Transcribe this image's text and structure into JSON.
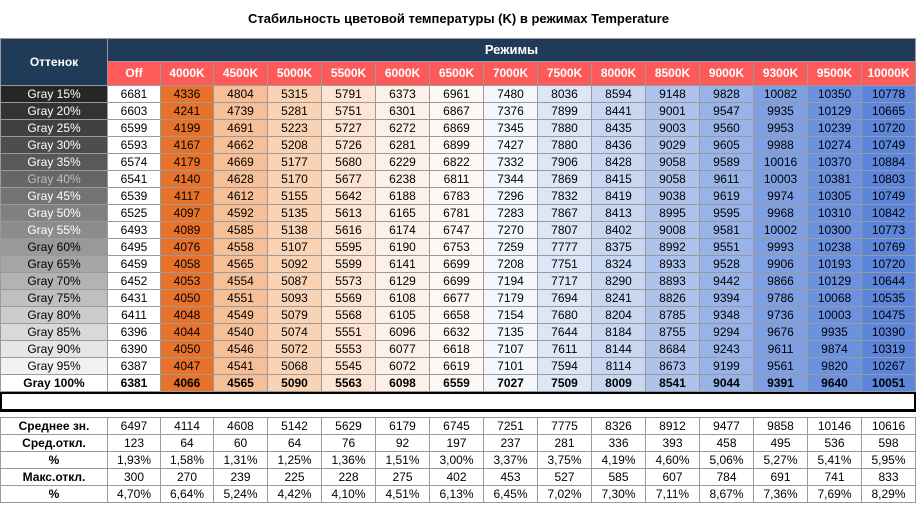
{
  "chart_data": {
    "type": "table",
    "title": "Стабильность цветовой температуры (K) в режимах Temperature",
    "header": {
      "row_header": "Оттенок",
      "group_header": "Режимы"
    },
    "modes": [
      "Off",
      "4000K",
      "4500K",
      "5000K",
      "5500K",
      "6000K",
      "6500K",
      "7000K",
      "7500K",
      "8000K",
      "8500K",
      "9000K",
      "9300K",
      "9500K",
      "10000K"
    ],
    "rows": [
      {
        "label": "Gray 15%",
        "values": [
          "6681",
          "4336",
          "4804",
          "5315",
          "5791",
          "6373",
          "6961",
          "7480",
          "8036",
          "8594",
          "9148",
          "9828",
          "10082",
          "10350",
          "10778"
        ]
      },
      {
        "label": "Gray 20%",
        "values": [
          "6603",
          "4241",
          "4739",
          "5281",
          "5751",
          "6301",
          "6867",
          "7376",
          "7899",
          "8441",
          "9001",
          "9547",
          "9935",
          "10129",
          "10665"
        ]
      },
      {
        "label": "Gray 25%",
        "values": [
          "6599",
          "4199",
          "4691",
          "5223",
          "5727",
          "6272",
          "6869",
          "7345",
          "7880",
          "8435",
          "9003",
          "9560",
          "9953",
          "10239",
          "10720"
        ]
      },
      {
        "label": "Gray 30%",
        "values": [
          "6593",
          "4167",
          "4662",
          "5208",
          "5726",
          "6281",
          "6899",
          "7427",
          "7880",
          "8436",
          "9029",
          "9605",
          "9988",
          "10274",
          "10749"
        ]
      },
      {
        "label": "Gray 35%",
        "values": [
          "6574",
          "4179",
          "4669",
          "5177",
          "5680",
          "6229",
          "6822",
          "7332",
          "7906",
          "8428",
          "9058",
          "9589",
          "10016",
          "10370",
          "10884"
        ]
      },
      {
        "label": "Gray 40%",
        "values": [
          "6541",
          "4140",
          "4628",
          "5170",
          "5677",
          "6238",
          "6811",
          "7344",
          "7869",
          "8415",
          "9058",
          "9611",
          "10003",
          "10381",
          "10803"
        ]
      },
      {
        "label": "Gray 45%",
        "values": [
          "6539",
          "4117",
          "4612",
          "5155",
          "5642",
          "6188",
          "6783",
          "7296",
          "7832",
          "8419",
          "9038",
          "9619",
          "9974",
          "10305",
          "10749"
        ]
      },
      {
        "label": "Gray 50%",
        "values": [
          "6525",
          "4097",
          "4592",
          "5135",
          "5613",
          "6165",
          "6781",
          "7283",
          "7867",
          "8413",
          "8995",
          "9595",
          "9968",
          "10310",
          "10842"
        ]
      },
      {
        "label": "Gray 55%",
        "values": [
          "6493",
          "4089",
          "4585",
          "5138",
          "5616",
          "6174",
          "6747",
          "7270",
          "7807",
          "8402",
          "9008",
          "9581",
          "10002",
          "10300",
          "10773"
        ]
      },
      {
        "label": "Gray 60%",
        "values": [
          "6495",
          "4076",
          "4558",
          "5107",
          "5595",
          "6190",
          "6753",
          "7259",
          "7777",
          "8375",
          "8992",
          "9551",
          "9993",
          "10238",
          "10769"
        ]
      },
      {
        "label": "Gray 65%",
        "values": [
          "6459",
          "4058",
          "4565",
          "5092",
          "5599",
          "6141",
          "6699",
          "7208",
          "7751",
          "8324",
          "8933",
          "9528",
          "9906",
          "10193",
          "10720"
        ]
      },
      {
        "label": "Gray 70%",
        "values": [
          "6452",
          "4053",
          "4554",
          "5087",
          "5573",
          "6129",
          "6699",
          "7194",
          "7717",
          "8290",
          "8893",
          "9442",
          "9866",
          "10129",
          "10644"
        ]
      },
      {
        "label": "Gray 75%",
        "values": [
          "6431",
          "4050",
          "4551",
          "5093",
          "5569",
          "6108",
          "6677",
          "7179",
          "7694",
          "8241",
          "8826",
          "9394",
          "9786",
          "10068",
          "10535"
        ]
      },
      {
        "label": "Gray 80%",
        "values": [
          "6411",
          "4048",
          "4549",
          "5079",
          "5568",
          "6105",
          "6658",
          "7154",
          "7680",
          "8204",
          "8785",
          "9348",
          "9736",
          "10003",
          "10475"
        ]
      },
      {
        "label": "Gray 85%",
        "values": [
          "6396",
          "4044",
          "4540",
          "5074",
          "5551",
          "6096",
          "6632",
          "7135",
          "7644",
          "8184",
          "8755",
          "9294",
          "9676",
          "9935",
          "10390"
        ]
      },
      {
        "label": "Gray 90%",
        "values": [
          "6390",
          "4050",
          "4546",
          "5072",
          "5553",
          "6077",
          "6618",
          "7107",
          "7611",
          "8144",
          "8684",
          "9243",
          "9611",
          "9874",
          "10319"
        ]
      },
      {
        "label": "Gray 95%",
        "values": [
          "6387",
          "4047",
          "4541",
          "5068",
          "5545",
          "6072",
          "6619",
          "7101",
          "7594",
          "8114",
          "8673",
          "9199",
          "9561",
          "9820",
          "10267"
        ]
      },
      {
        "label": "Gray 100%",
        "values": [
          "6381",
          "4066",
          "4565",
          "5090",
          "5563",
          "6098",
          "6559",
          "7027",
          "7509",
          "8009",
          "8541",
          "9044",
          "9391",
          "9640",
          "10051"
        ],
        "bold": true
      }
    ],
    "stats": [
      {
        "label": "Среднее зн.",
        "values": [
          "6497",
          "4114",
          "4608",
          "5142",
          "5629",
          "6179",
          "6745",
          "7251",
          "7775",
          "8326",
          "8912",
          "9477",
          "9858",
          "10146",
          "10616"
        ]
      },
      {
        "label": "Сред.откл.",
        "values": [
          "123",
          "64",
          "60",
          "64",
          "76",
          "92",
          "197",
          "237",
          "281",
          "336",
          "393",
          "458",
          "495",
          "536",
          "598"
        ]
      },
      {
        "label": "%",
        "values": [
          "1,93%",
          "1,58%",
          "1,31%",
          "1,25%",
          "1,36%",
          "1,51%",
          "3,00%",
          "3,37%",
          "3,75%",
          "4,19%",
          "4,60%",
          "5,06%",
          "5,27%",
          "5,41%",
          "5,95%"
        ]
      },
      {
        "label": "Макс.откл.",
        "values": [
          "300",
          "270",
          "239",
          "225",
          "228",
          "275",
          "402",
          "453",
          "527",
          "585",
          "607",
          "784",
          "691",
          "741",
          "833"
        ]
      },
      {
        "label": "%",
        "values": [
          "4,70%",
          "6,64%",
          "5,24%",
          "4,42%",
          "4,10%",
          "4,51%",
          "6,13%",
          "6,45%",
          "7,02%",
          "7,30%",
          "7,11%",
          "8,67%",
          "7,36%",
          "7,69%",
          "8,29%"
        ]
      }
    ]
  },
  "colors": {
    "header_bg": "#1f3b58",
    "mode_bg": "#ff5a5a",
    "column_bg": [
      "#ffffff",
      "#e9722a",
      "#f7bf98",
      "#fad3b5",
      "#fde4d3",
      "#fdf0e8",
      "#fff9f6",
      "#f4f7fc",
      "#dde6f6",
      "#c8d7f1",
      "#aec3ec",
      "#98b3e7",
      "#7ea0e3",
      "#6b91df",
      "#5c86dc"
    ],
    "gray_rows": [
      {
        "bg": "#262626",
        "fg": "#ffffff"
      },
      {
        "bg": "#333333",
        "fg": "#ffffff"
      },
      {
        "bg": "#404040",
        "fg": "#ffffff"
      },
      {
        "bg": "#4d4d4d",
        "fg": "#ffffff"
      },
      {
        "bg": "#595959",
        "fg": "#ffffff"
      },
      {
        "bg": "#666666",
        "fg": "#bfbfbf"
      },
      {
        "bg": "#737373",
        "fg": "#ffffff"
      },
      {
        "bg": "#808080",
        "fg": "#ffffff"
      },
      {
        "bg": "#8c8c8c",
        "fg": "#ffffff"
      },
      {
        "bg": "#999999",
        "fg": "#000000"
      },
      {
        "bg": "#a6a6a6",
        "fg": "#000000"
      },
      {
        "bg": "#b3b3b3",
        "fg": "#000000"
      },
      {
        "bg": "#bfbfbf",
        "fg": "#000000"
      },
      {
        "bg": "#cccccc",
        "fg": "#000000"
      },
      {
        "bg": "#d9d9d9",
        "fg": "#000000"
      },
      {
        "bg": "#e6e6e6",
        "fg": "#000000"
      },
      {
        "bg": "#f2f2f2",
        "fg": "#000000"
      },
      {
        "bg": "#ffffff",
        "fg": "#000000"
      }
    ]
  }
}
